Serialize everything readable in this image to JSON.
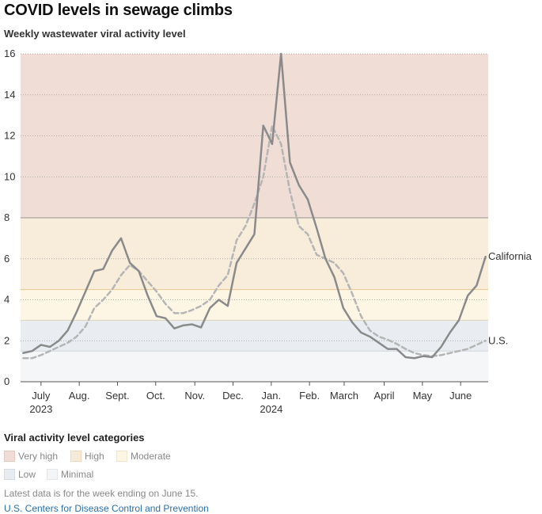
{
  "title": "COVID levels in sewage climbs",
  "subtitle": "Weekly wastewater viral activity level",
  "legend": {
    "title": "Viral activity level categories",
    "items": [
      {
        "label": "Very high",
        "color": "#f1ddd6",
        "border": "#e9c8bb"
      },
      {
        "label": "High",
        "color": "#f8ead9",
        "border": "#eed6bb"
      },
      {
        "label": "Moderate",
        "color": "#fdf6e4",
        "border": "#f2e6c8"
      },
      {
        "label": "Low",
        "color": "#e8ecf0",
        "border": "#d6dce3"
      },
      {
        "label": "Minimal",
        "color": "#f3f5f6",
        "border": "#e3e6e8"
      }
    ]
  },
  "note": "Latest data is for the week ending on June 15.",
  "source": "U.S. Centers for Disease Control and Prevention",
  "chart_data": {
    "type": "line",
    "ylim": [
      0,
      16
    ],
    "yticks": [
      0,
      2,
      4,
      6,
      8,
      10,
      12,
      14,
      16
    ],
    "x_unit": "weeks since Jun 17, 2023",
    "xlim": [
      -0.3,
      52.3
    ],
    "xticks": [
      {
        "label": "July",
        "sub": "2023",
        "x": 2.0
      },
      {
        "label": "Aug.",
        "sub": "",
        "x": 6.3
      },
      {
        "label": "Sept.",
        "sub": "",
        "x": 10.6
      },
      {
        "label": "Oct.",
        "sub": "",
        "x": 14.9
      },
      {
        "label": "Nov.",
        "sub": "",
        "x": 19.3
      },
      {
        "label": "Dec.",
        "sub": "",
        "x": 23.6
      },
      {
        "label": "Jan.",
        "sub": "2024",
        "x": 27.9
      },
      {
        "label": "Feb.",
        "sub": "",
        "x": 32.2
      },
      {
        "label": "March",
        "sub": "",
        "x": 36.1
      },
      {
        "label": "April",
        "sub": "",
        "x": 40.6
      },
      {
        "label": "May",
        "sub": "",
        "x": 44.9
      },
      {
        "label": "June",
        "sub": "",
        "x": 49.2
      }
    ],
    "bands": [
      {
        "name": "Very high",
        "from": 8,
        "to": 16,
        "color": "#f0ddd6"
      },
      {
        "name": "High",
        "from": 4.5,
        "to": 8,
        "color": "#f8ecda"
      },
      {
        "name": "Moderate",
        "from": 3,
        "to": 4.5,
        "color": "#fdf6e4"
      },
      {
        "name": "Low",
        "from": 1.5,
        "to": 3,
        "color": "#e9edf1"
      },
      {
        "name": "Minimal",
        "from": 0,
        "to": 1.5,
        "color": "#f4f6f7"
      }
    ],
    "series": [
      {
        "name": "California",
        "style": "solid",
        "color": "#8a8a8a",
        "values": [
          1.4,
          1.5,
          1.8,
          1.7,
          2.0,
          2.5,
          3.4,
          4.4,
          5.4,
          5.5,
          6.4,
          7.0,
          5.8,
          5.4,
          4.2,
          3.2,
          3.1,
          2.6,
          2.75,
          2.8,
          2.65,
          3.6,
          4.0,
          3.7,
          5.8,
          6.5,
          7.2,
          12.5,
          11.6,
          16.0,
          10.7,
          9.6,
          8.9,
          7.5,
          6.0,
          5.1,
          3.6,
          2.9,
          2.4,
          2.2,
          1.9,
          1.6,
          1.6,
          1.2,
          1.15,
          1.25,
          1.2,
          1.7,
          2.4,
          3.0,
          4.2,
          4.7,
          6.1
        ]
      },
      {
        "name": "U.S.",
        "style": "dashed",
        "color": "#b5b5b5",
        "values": [
          1.15,
          1.15,
          1.3,
          1.5,
          1.7,
          1.9,
          2.2,
          2.7,
          3.6,
          4.0,
          4.5,
          5.2,
          5.7,
          5.4,
          4.9,
          4.4,
          3.8,
          3.35,
          3.35,
          3.5,
          3.7,
          4.0,
          4.7,
          5.2,
          6.9,
          7.6,
          8.7,
          10.0,
          12.5,
          11.6,
          9.3,
          7.6,
          7.2,
          6.2,
          6.0,
          5.8,
          5.3,
          4.3,
          3.2,
          2.5,
          2.2,
          2.05,
          1.85,
          1.6,
          1.4,
          1.3,
          1.25,
          1.3,
          1.4,
          1.5,
          1.6,
          1.8,
          2.0
        ]
      }
    ]
  }
}
